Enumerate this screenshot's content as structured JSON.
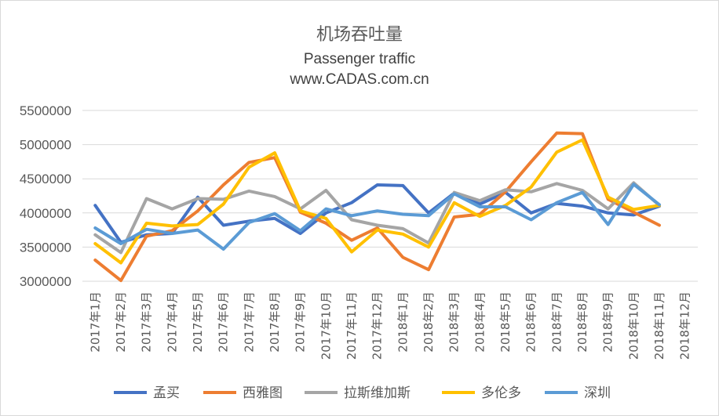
{
  "chart_data": {
    "type": "line",
    "title": "机场吞吐量",
    "subtitle_lines": [
      "Passenger traffic",
      "www.CADAS.com.cn"
    ],
    "categories": [
      "2017年1月",
      "2017年2月",
      "2017年3月",
      "2017年4月",
      "2017年5月",
      "2017年6月",
      "2017年7月",
      "2017年8月",
      "2017年9月",
      "2017年10月",
      "2017年11月",
      "2017年12月",
      "2018年1月",
      "2018年2月",
      "2018年3月",
      "2018年4月",
      "2018年5月",
      "2018年6月",
      "2018年7月",
      "2018年8月",
      "2018年9月",
      "2018年10月",
      "2018年11月",
      "2018年12月"
    ],
    "ylim": [
      3000000,
      5500000
    ],
    "yticks": [
      "3000000",
      "3500000",
      "4000000",
      "4500000",
      "5000000",
      "5500000"
    ],
    "grid": true,
    "legend_position": "bottom",
    "series": [
      {
        "name": "孟买",
        "color": "#4472C4",
        "values": [
          4110000,
          3570000,
          3680000,
          3700000,
          4230000,
          3820000,
          3880000,
          3920000,
          3700000,
          4000000,
          4150000,
          4410000,
          4400000,
          4000000,
          4290000,
          4130000,
          4300000,
          4000000,
          4140000,
          4100000,
          4000000,
          3970000,
          4100000,
          null
        ]
      },
      {
        "name": "西雅图",
        "color": "#ED7D31",
        "values": [
          3310000,
          3010000,
          3660000,
          3740000,
          4030000,
          4410000,
          4740000,
          4810000,
          4010000,
          3850000,
          3600000,
          3780000,
          3350000,
          3170000,
          3940000,
          3980000,
          4310000,
          4750000,
          5170000,
          5160000,
          4200000,
          4010000,
          3820000,
          null
        ]
      },
      {
        "name": "拉斯维加斯",
        "color": "#A5A5A5",
        "values": [
          3680000,
          3420000,
          4210000,
          4060000,
          4210000,
          4200000,
          4320000,
          4240000,
          4060000,
          4330000,
          3900000,
          3820000,
          3770000,
          3560000,
          4300000,
          4180000,
          4340000,
          4310000,
          4430000,
          4330000,
          4060000,
          4440000,
          4110000,
          null
        ]
      },
      {
        "name": "多伦多",
        "color": "#FFC000",
        "values": [
          3550000,
          3270000,
          3850000,
          3810000,
          3830000,
          4130000,
          4670000,
          4880000,
          4030000,
          3920000,
          3430000,
          3750000,
          3690000,
          3500000,
          4150000,
          3950000,
          4110000,
          4380000,
          4890000,
          5070000,
          4230000,
          4050000,
          4110000,
          null
        ]
      },
      {
        "name": "深圳",
        "color": "#5B9BD5",
        "values": [
          3780000,
          3550000,
          3760000,
          3700000,
          3750000,
          3470000,
          3860000,
          3990000,
          3740000,
          4060000,
          3960000,
          4030000,
          3980000,
          3960000,
          4280000,
          4090000,
          4090000,
          3900000,
          4150000,
          4300000,
          3830000,
          4420000,
          4120000,
          null
        ]
      }
    ]
  }
}
